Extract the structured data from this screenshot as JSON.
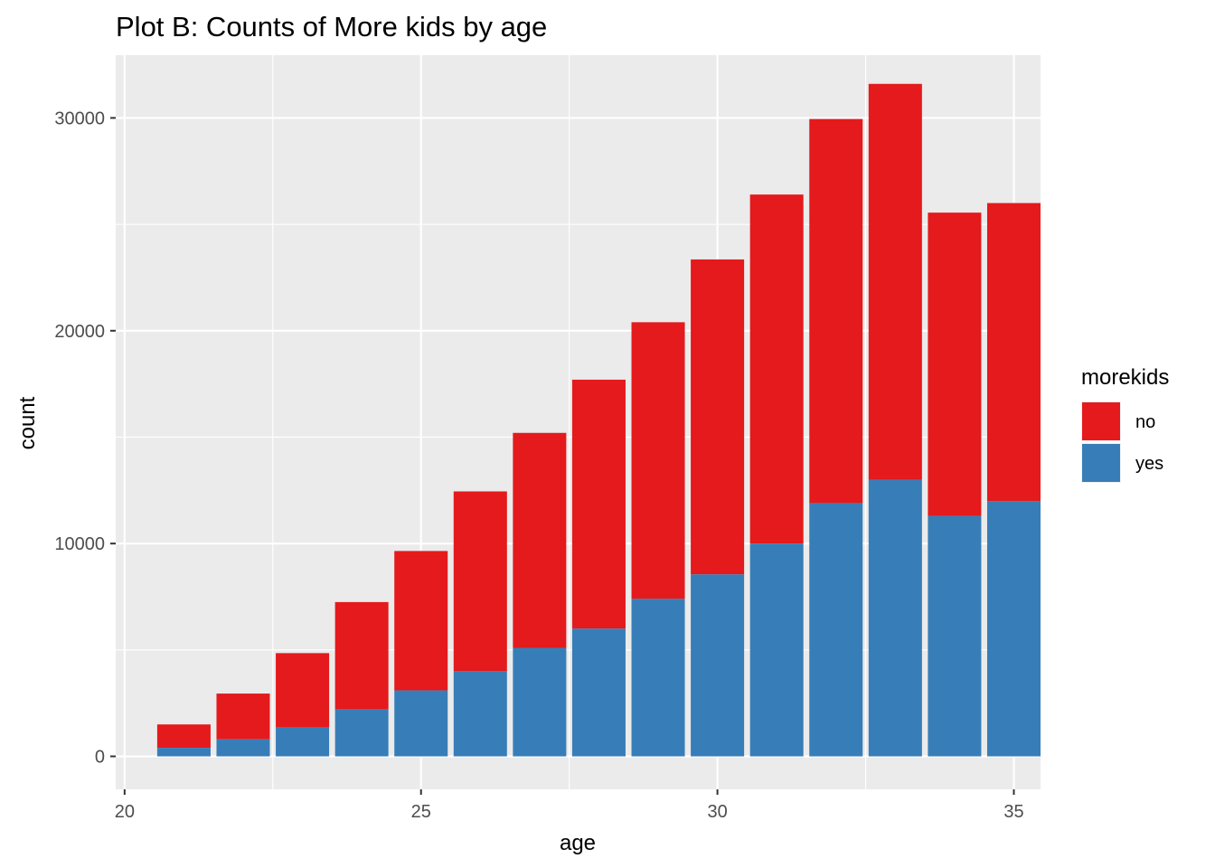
{
  "chart_data": {
    "type": "bar",
    "stacked": true,
    "title": "Plot B: Counts of More kids by age",
    "xlabel": "age",
    "ylabel": "count",
    "categories": [
      21,
      22,
      23,
      24,
      25,
      26,
      27,
      28,
      29,
      30,
      31,
      32,
      33,
      34,
      35
    ],
    "xlim": [
      19.85,
      35.45
    ],
    "ylim": [
      -1550,
      32950
    ],
    "x_ticks": [
      20,
      25,
      30,
      35
    ],
    "y_ticks": [
      0,
      10000,
      20000,
      30000
    ],
    "grid": true,
    "legend": {
      "title": "morekids",
      "position": "right"
    },
    "series": [
      {
        "name": "yes",
        "color": "#377EB8",
        "values": [
          400,
          800,
          1350,
          2200,
          3100,
          4000,
          5100,
          6000,
          7400,
          8550,
          10000,
          11900,
          13000,
          11300,
          12000
        ]
      },
      {
        "name": "no",
        "color": "#E41A1C",
        "values": [
          1100,
          2150,
          3500,
          5050,
          6550,
          8450,
          10100,
          11700,
          13000,
          14800,
          16400,
          18050,
          18600,
          14250,
          14000
        ]
      }
    ],
    "legend_order": [
      "no",
      "yes"
    ]
  },
  "style": {
    "panel_background": "#EBEBEB",
    "gridline_color": "#FFFFFF",
    "text_color": "#000000",
    "tick_label_color": "#4D4D4D"
  }
}
